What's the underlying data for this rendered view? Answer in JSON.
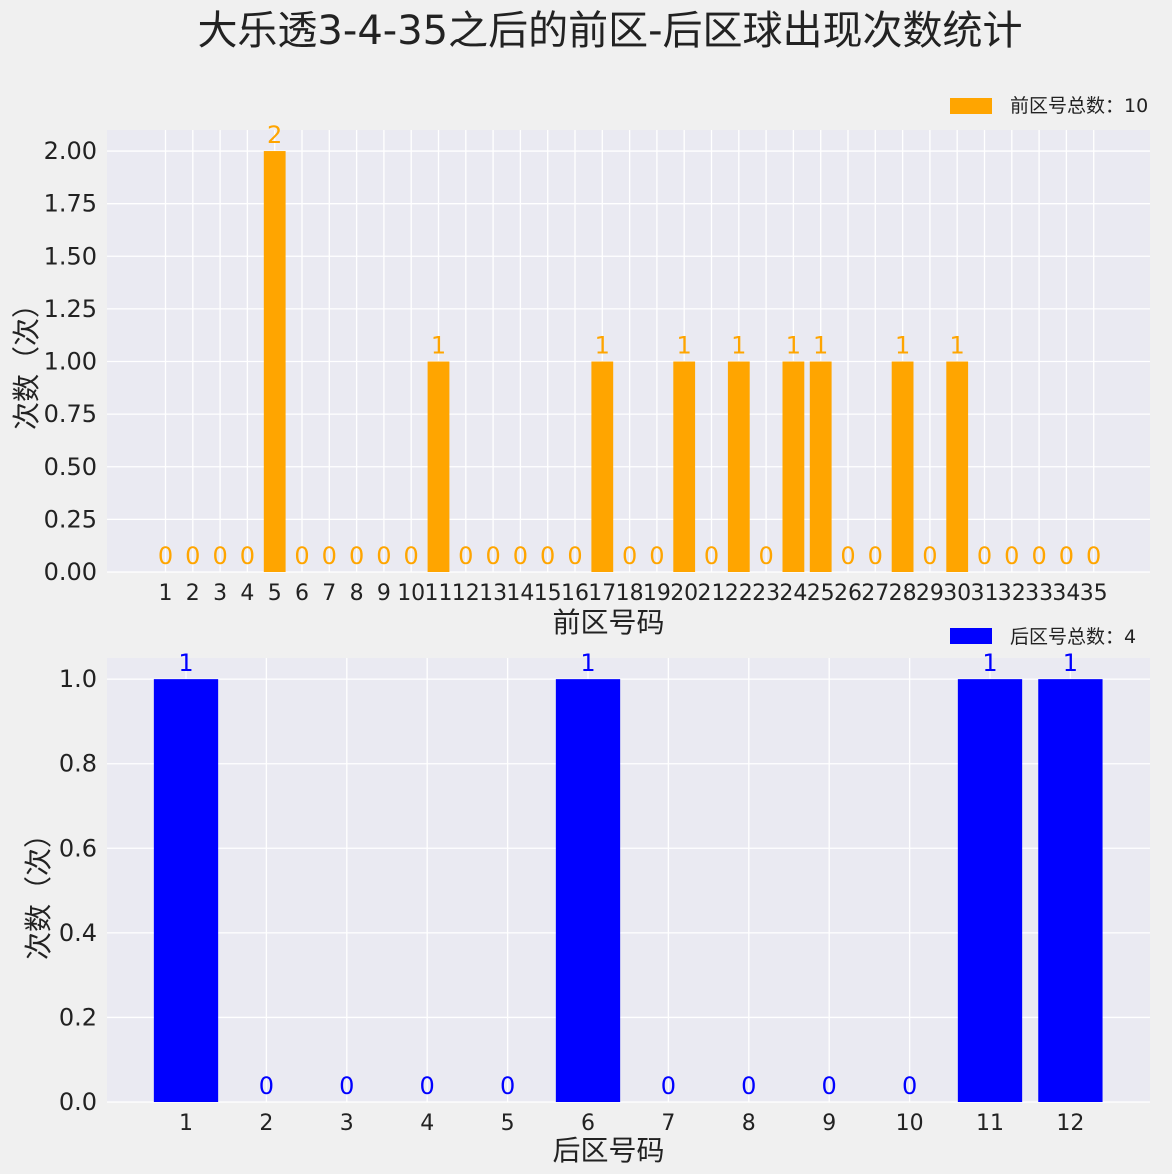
{
  "title": "大乐透3-4-35之后的前区-后区球出现次数统计",
  "chart_data": [
    {
      "type": "bar",
      "categories": [
        "1",
        "2",
        "3",
        "4",
        "5",
        "6",
        "7",
        "8",
        "9",
        "10",
        "11",
        "12",
        "13",
        "14",
        "15",
        "16",
        "17",
        "18",
        "19",
        "20",
        "21",
        "22",
        "23",
        "24",
        "25",
        "26",
        "27",
        "28",
        "29",
        "30",
        "31",
        "32",
        "33",
        "34",
        "35"
      ],
      "values": [
        0,
        0,
        0,
        0,
        2,
        0,
        0,
        0,
        0,
        0,
        1,
        0,
        0,
        0,
        0,
        0,
        1,
        0,
        0,
        1,
        0,
        1,
        0,
        1,
        1,
        0,
        0,
        1,
        0,
        1,
        0,
        0,
        0,
        0,
        0
      ],
      "series_name": "前区号总数：10",
      "xlabel": "前区号码",
      "ylabel": "次数（次）",
      "ylim": [
        0,
        2.1
      ],
      "yticks": [
        "0.00",
        "0.25",
        "0.50",
        "0.75",
        "1.00",
        "1.25",
        "1.50",
        "1.75",
        "2.00"
      ],
      "color": "#ffa500",
      "legend_position": "top-right",
      "grid": true
    },
    {
      "type": "bar",
      "categories": [
        "1",
        "2",
        "3",
        "4",
        "5",
        "6",
        "7",
        "8",
        "9",
        "10",
        "11",
        "12"
      ],
      "values": [
        1,
        0,
        0,
        0,
        0,
        1,
        0,
        0,
        0,
        0,
        1,
        1
      ],
      "series_name": "后区号总数：4",
      "xlabel": "后区号码",
      "ylabel": "次数（次）",
      "ylim": [
        0,
        1.05
      ],
      "yticks": [
        "0.0",
        "0.2",
        "0.4",
        "0.6",
        "0.8",
        "1.0"
      ],
      "color": "#0000ff",
      "legend_position": "top-right",
      "grid": true
    }
  ]
}
